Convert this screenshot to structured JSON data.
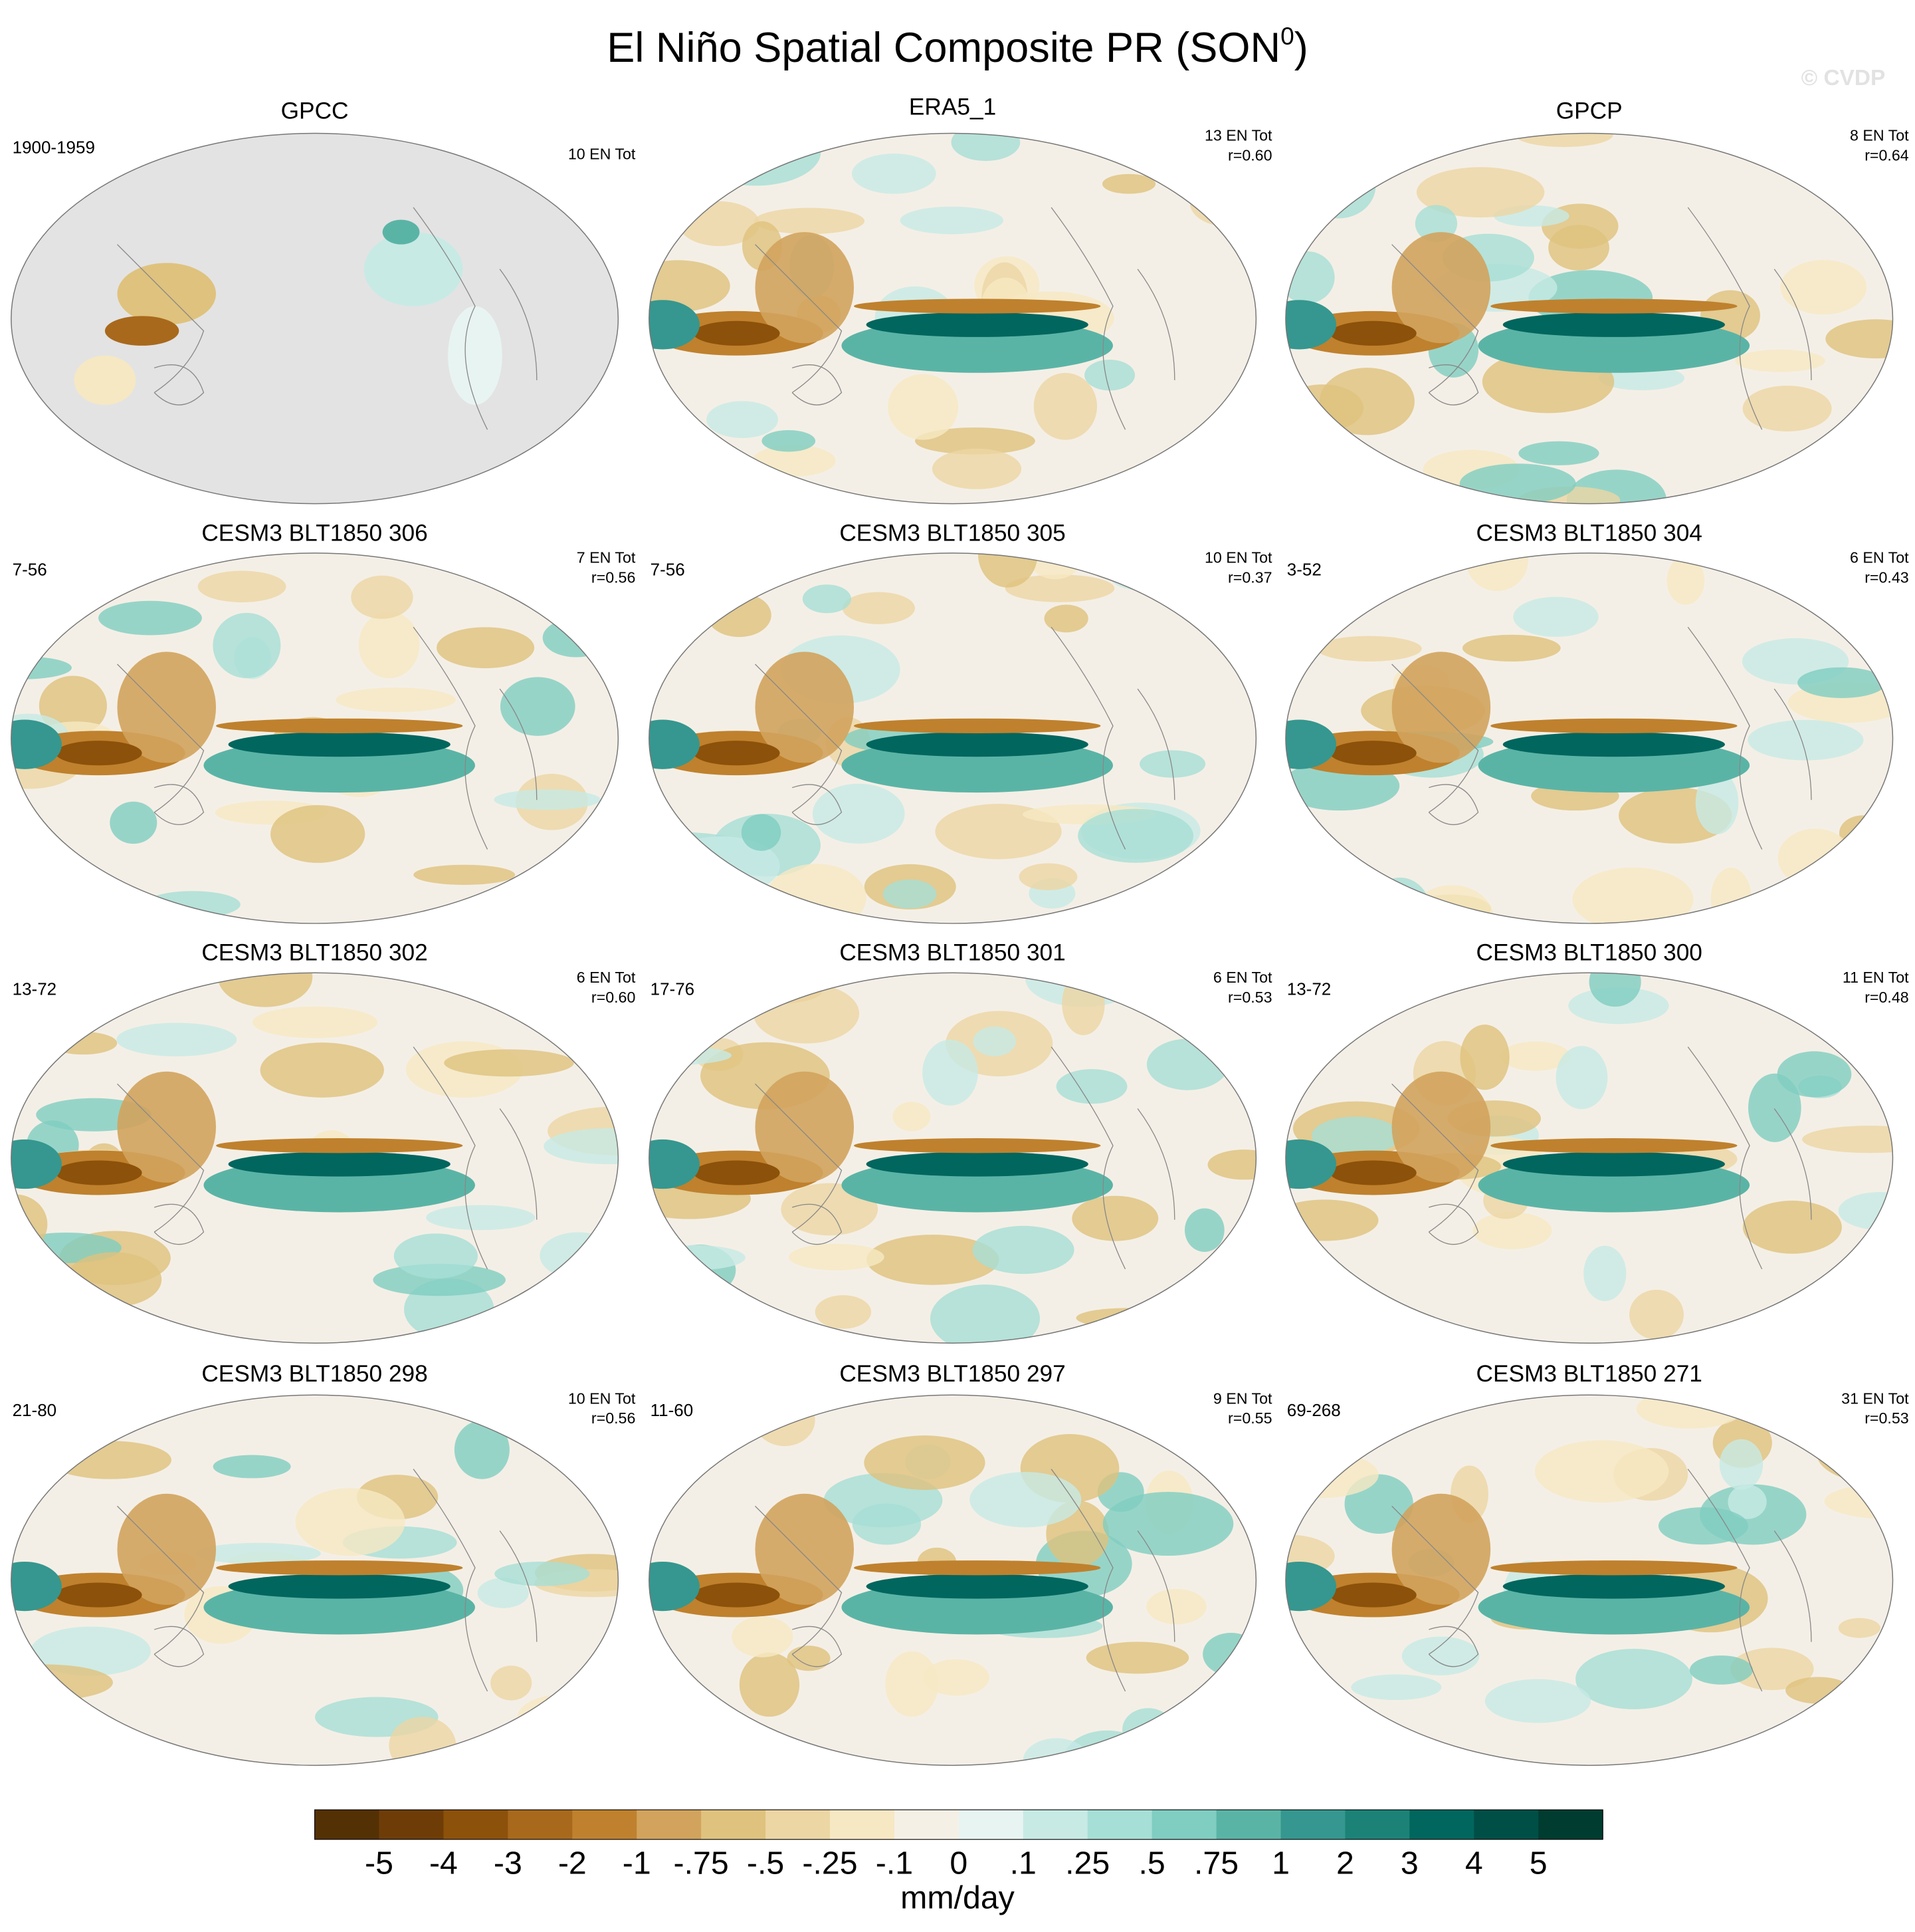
{
  "title": {
    "main": "El Niño Spatial Composite PR (SON",
    "sup": "0",
    "end": ")"
  },
  "watermark": "© CVDP",
  "panels": [
    {
      "title": "GPCC",
      "period": "1900-1959",
      "stats": [
        "10 EN Tot"
      ]
    },
    {
      "title": "ERA5_1",
      "stats": [
        "13 EN Tot",
        "r=0.60"
      ]
    },
    {
      "title": "GPCP",
      "stats": [
        "8 EN Tot",
        "r=0.64"
      ]
    },
    {
      "title": "CESM3 BLT1850 306",
      "period": "7-56",
      "stats": [
        "7 EN Tot",
        "r=0.56"
      ]
    },
    {
      "title": "CESM3 BLT1850 305",
      "period": "7-56",
      "stats": [
        "10 EN Tot",
        "r=0.37"
      ]
    },
    {
      "title": "CESM3 BLT1850 304",
      "period": "3-52",
      "stats": [
        "6 EN Tot",
        "r=0.43"
      ]
    },
    {
      "title": "CESM3 BLT1850 302",
      "period": "13-72",
      "stats": [
        "6 EN Tot",
        "r=0.60"
      ]
    },
    {
      "title": "CESM3 BLT1850 301",
      "period": "17-76",
      "stats": [
        "6 EN Tot",
        "r=0.53"
      ]
    },
    {
      "title": "CESM3 BLT1850 300",
      "period": "13-72",
      "stats": [
        "11 EN Tot",
        "r=0.48"
      ]
    },
    {
      "title": "CESM3 BLT1850 298",
      "period": "21-80",
      "stats": [
        "10 EN Tot",
        "r=0.56"
      ]
    },
    {
      "title": "CESM3 BLT1850 297",
      "period": "11-60",
      "stats": [
        "9 EN Tot",
        "r=0.55"
      ]
    },
    {
      "title": "CESM3 BLT1850 271",
      "period": "69-268",
      "stats": [
        "31 EN Tot",
        "r=0.53"
      ]
    }
  ],
  "colorbar": {
    "colors": [
      "#543005",
      "#6e3d07",
      "#8c510a",
      "#a8691c",
      "#bf812d",
      "#d2a35d",
      "#dfc27d",
      "#ecd6a4",
      "#f6e8c3",
      "#f5f0e6",
      "#e8f4f1",
      "#c7eae5",
      "#a6dfd6",
      "#80cdc1",
      "#5ab4a6",
      "#35978f",
      "#1c8277",
      "#01665e",
      "#004f46",
      "#003c30"
    ],
    "labels": [
      "-5",
      "-4",
      "-3",
      "-2",
      "-1",
      "-.75",
      "-.5",
      "-.25",
      "-.1",
      "0",
      ".1",
      ".25",
      ".5",
      ".75",
      "1",
      "2",
      "3",
      "4",
      "5"
    ],
    "unit": "mm/day"
  }
}
